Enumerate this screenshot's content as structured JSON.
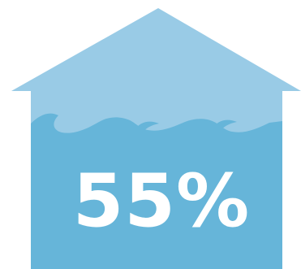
{
  "infographic": {
    "value_label": "55%",
    "fill_level": 0.55,
    "colors": {
      "house": "#99cbe6",
      "water": "#66b5d9",
      "text": "#ffffff"
    }
  }
}
